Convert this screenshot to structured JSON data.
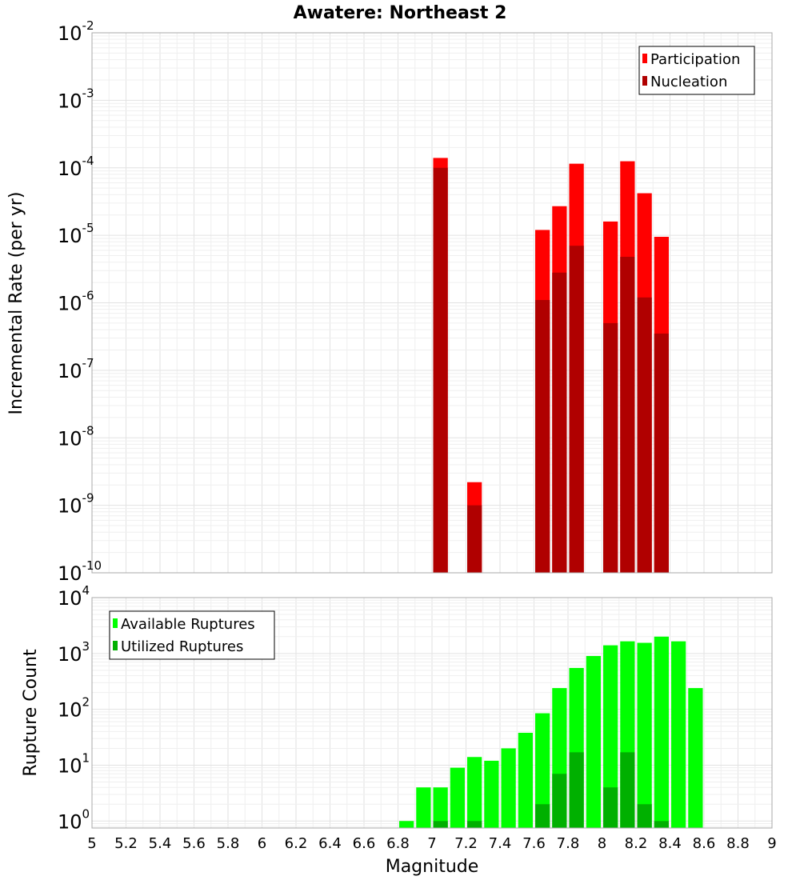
{
  "chart_data": [
    {
      "type": "bar",
      "title": "Awatere: Northeast 2",
      "xlabel": "",
      "ylabel": "Incremental Rate (per yr)",
      "yscale": "log",
      "xlim": [
        5,
        9
      ],
      "ylim": [
        1e-10,
        0.01
      ],
      "y_ticks": [
        {
          "base": "10",
          "exp": "-10"
        },
        {
          "base": "10",
          "exp": "-9"
        },
        {
          "base": "10",
          "exp": "-8"
        },
        {
          "base": "10",
          "exp": "-7"
        },
        {
          "base": "10",
          "exp": "-6"
        },
        {
          "base": "10",
          "exp": "-5"
        },
        {
          "base": "10",
          "exp": "-4"
        },
        {
          "base": "10",
          "exp": "-3"
        },
        {
          "base": "10",
          "exp": "-2"
        }
      ],
      "grid": true,
      "legend_position": "top-right",
      "series": [
        {
          "name": "Participation",
          "color": "#ff0000",
          "x": [
            7.05,
            7.25,
            7.65,
            7.75,
            7.85,
            8.05,
            8.15,
            8.25,
            8.35
          ],
          "values": [
            0.00014,
            2.2e-09,
            1.2e-05,
            2.7e-05,
            0.000115,
            1.6e-05,
            0.000125,
            4.2e-05,
            9.5e-06
          ]
        },
        {
          "name": "Nucleation",
          "color": "#b00000",
          "x": [
            7.05,
            7.25,
            7.65,
            7.75,
            7.85,
            8.05,
            8.15,
            8.25,
            8.35
          ],
          "values": [
            0.0001,
            1e-09,
            1.1e-06,
            2.8e-06,
            7e-06,
            5e-07,
            4.8e-06,
            1.2e-06,
            3.5e-07
          ]
        }
      ]
    },
    {
      "type": "bar",
      "title": "",
      "xlabel": "Magnitude",
      "ylabel": "Rupture Count",
      "yscale": "log",
      "xlim": [
        5,
        9
      ],
      "ylim": [
        0.75,
        10000
      ],
      "x_ticks": [
        "5",
        "5.2",
        "5.4",
        "5.6",
        "5.8",
        "6",
        "6.2",
        "6.4",
        "6.6",
        "6.8",
        "7",
        "7.2",
        "7.4",
        "7.6",
        "7.8",
        "8",
        "8.2",
        "8.4",
        "8.6",
        "8.8",
        "9"
      ],
      "y_ticks": [
        {
          "base": "10",
          "exp": "0"
        },
        {
          "base": "10",
          "exp": "1"
        },
        {
          "base": "10",
          "exp": "2"
        },
        {
          "base": "10",
          "exp": "3"
        },
        {
          "base": "10",
          "exp": "4"
        }
      ],
      "grid": true,
      "legend_position": "top-left",
      "series": [
        {
          "name": "Available Ruptures",
          "color": "#00ff00",
          "x": [
            6.85,
            6.95,
            7.05,
            7.15,
            7.25,
            7.35,
            7.45,
            7.55,
            7.65,
            7.75,
            7.85,
            7.95,
            8.05,
            8.15,
            8.25,
            8.35,
            8.45,
            8.55
          ],
          "values": [
            1,
            4,
            4,
            9,
            14,
            12,
            20,
            38,
            85,
            240,
            550,
            900,
            1400,
            1650,
            1550,
            2000,
            1650,
            240
          ]
        },
        {
          "name": "Utilized Ruptures",
          "color": "#00b000",
          "x": [
            7.05,
            7.25,
            7.65,
            7.75,
            7.85,
            8.05,
            8.15,
            8.25,
            8.35
          ],
          "values": [
            1,
            1,
            2,
            7,
            17,
            4,
            17,
            2,
            1
          ]
        }
      ]
    }
  ]
}
